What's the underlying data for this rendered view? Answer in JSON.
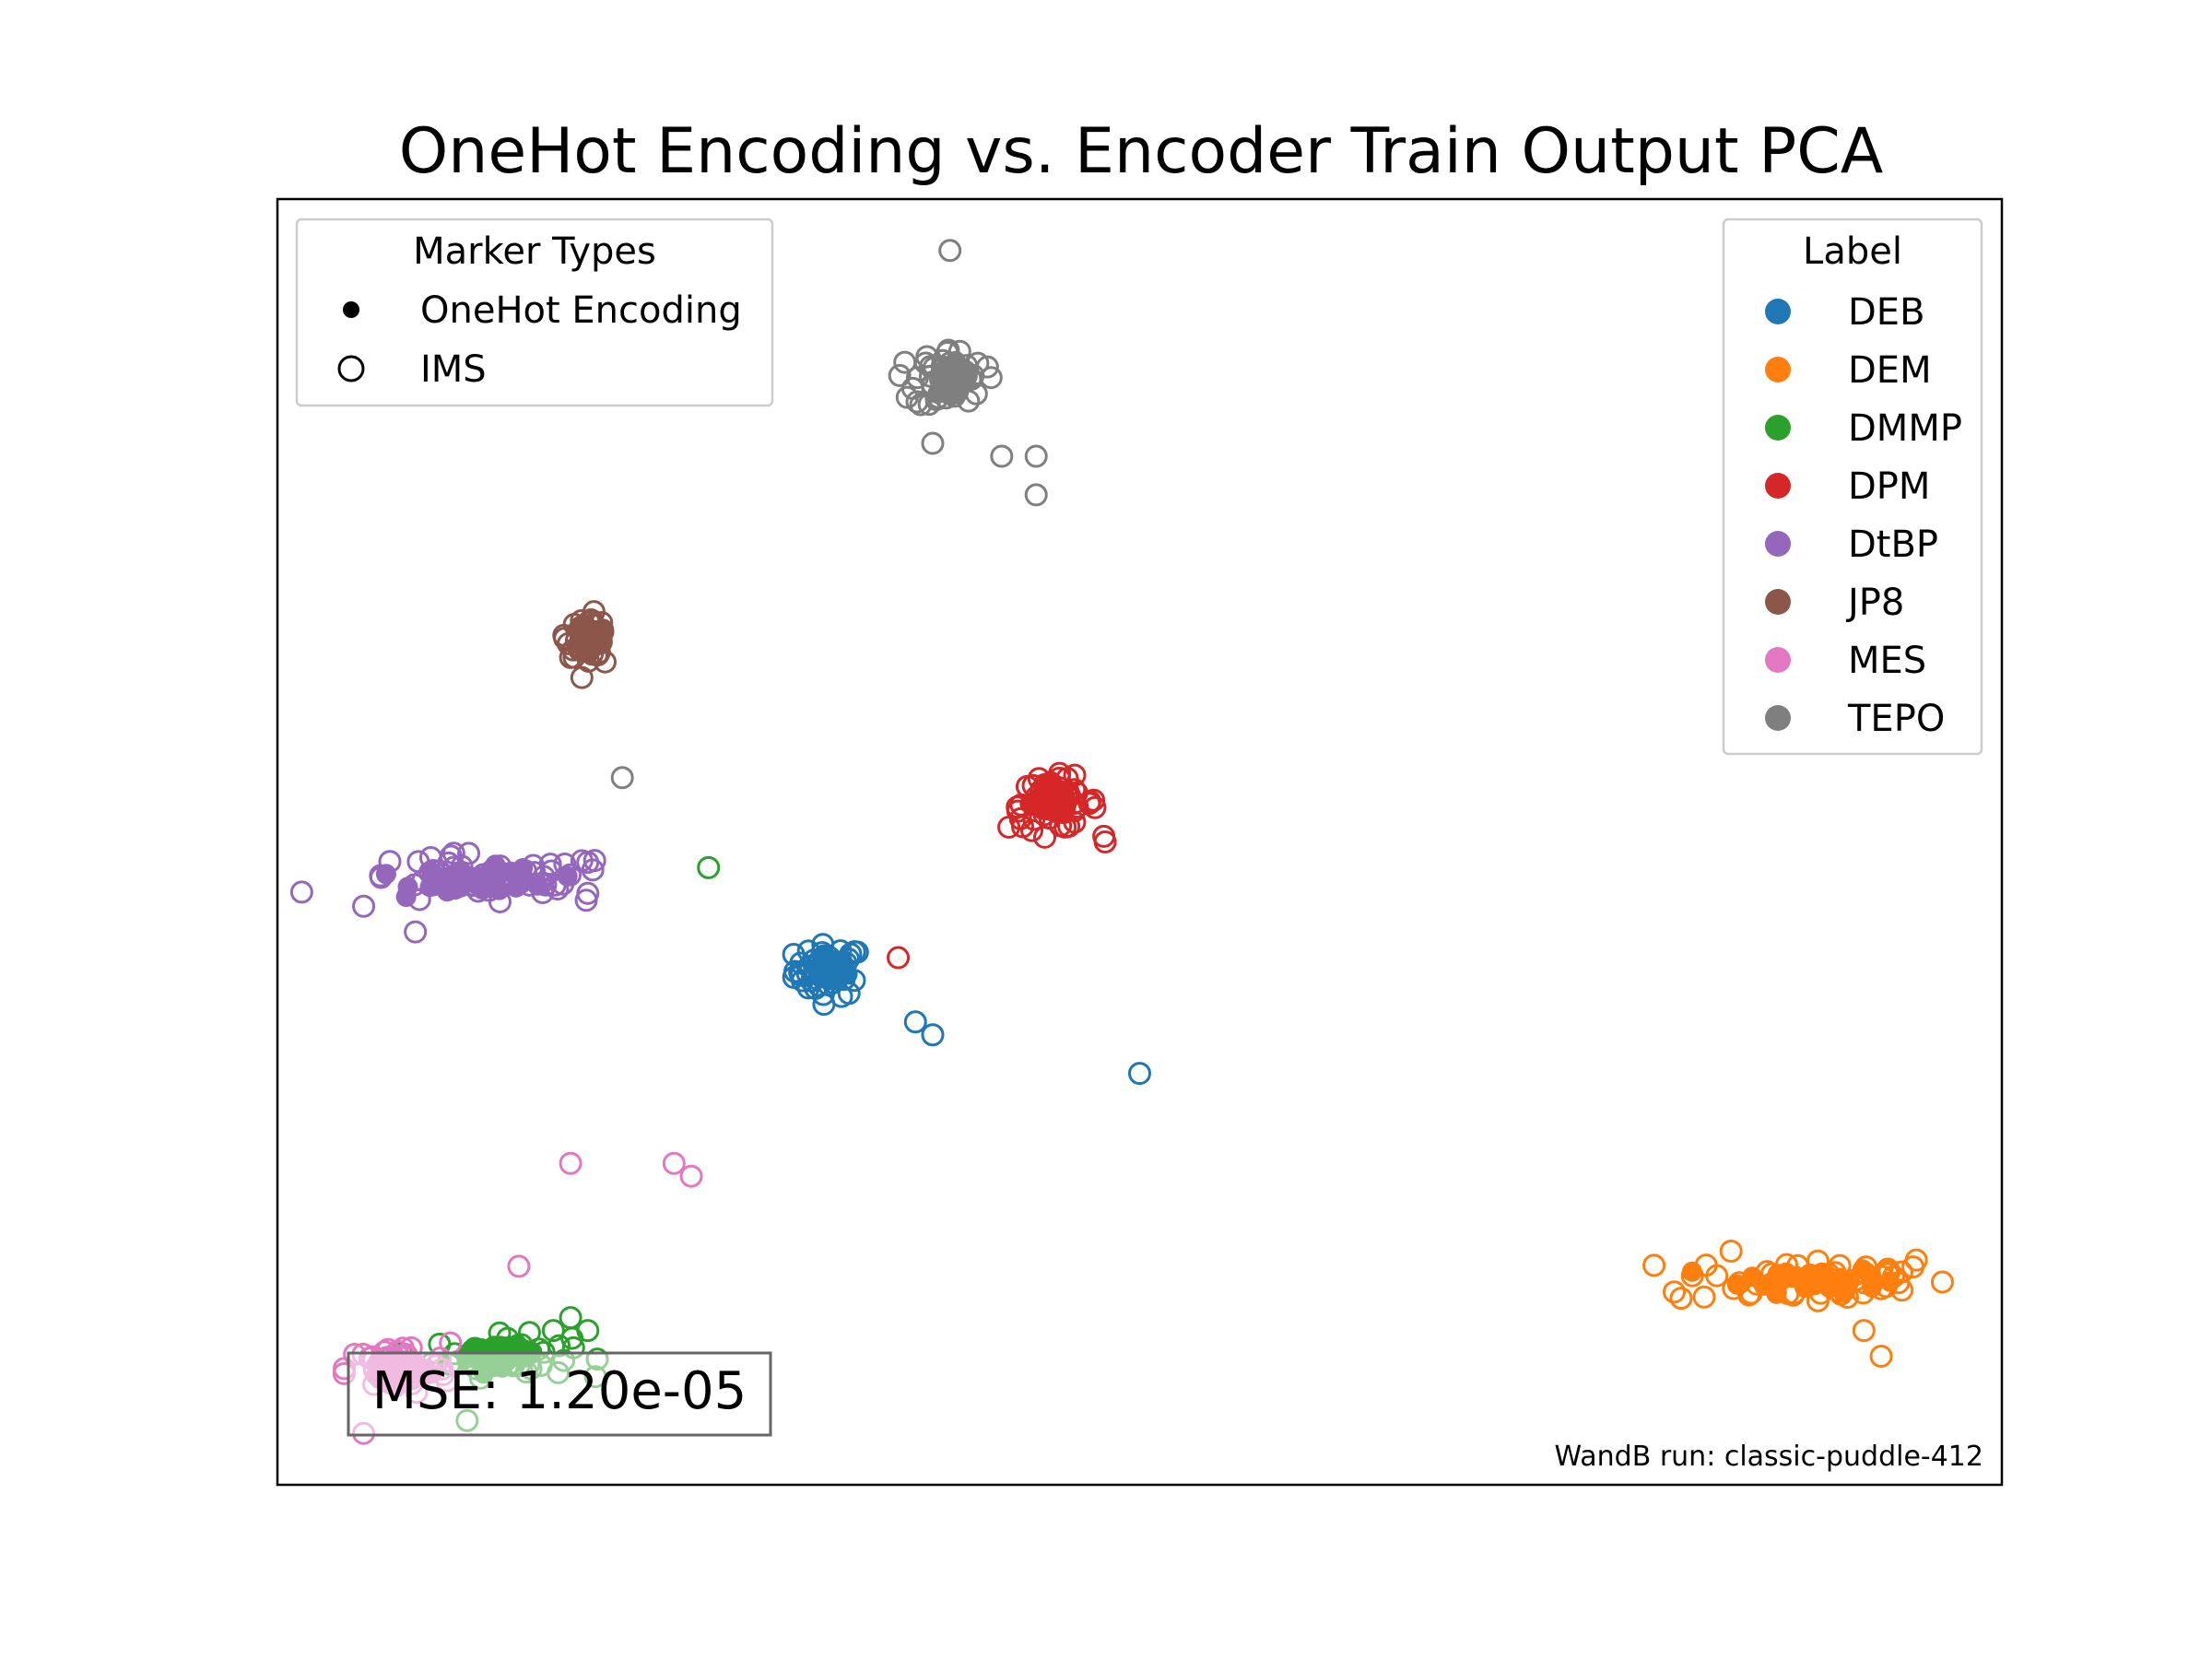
{
  "chart_data": {
    "type": "scatter",
    "title": "OneHot Encoding vs. Encoder Train Output PCA",
    "xlabel": "",
    "ylabel": "",
    "axes_visible": false,
    "grid": false,
    "marker_legend": {
      "title": "Marker Types",
      "placement": "top-left",
      "entries": [
        {
          "label": "OneHot Encoding",
          "marker": "filled-dot"
        },
        {
          "label": "IMS",
          "marker": "open-circle"
        }
      ]
    },
    "label_legend": {
      "title": "Label",
      "placement": "top-right"
    },
    "series": [
      {
        "name": "DEB",
        "color": "#1f77b4",
        "center": [
          0.32,
          0.4
        ],
        "spread": [
          0.01,
          0.01
        ],
        "outliers": [
          [
            0.37,
            0.36
          ],
          [
            0.38,
            0.35
          ],
          [
            0.5,
            0.32
          ]
        ]
      },
      {
        "name": "DEM",
        "color": "#ff7f0e",
        "center": [
          0.89,
          0.16
        ],
        "spread": [
          0.04,
          0.01
        ],
        "outliers": [
          [
            0.81,
            0.15
          ],
          [
            0.92,
            0.12
          ],
          [
            0.93,
            0.1
          ]
        ]
      },
      {
        "name": "DMMP",
        "color": "#2ca02c",
        "center": [
          0.13,
          0.1
        ],
        "spread": [
          0.02,
          0.008
        ],
        "outliers": [
          [
            0.25,
            0.48
          ],
          [
            0.16,
            0.12
          ],
          [
            0.17,
            0.13
          ],
          [
            0.18,
            0.12
          ],
          [
            0.11,
            0.05
          ]
        ]
      },
      {
        "name": "DPM",
        "color": "#d62728",
        "center": [
          0.45,
          0.53
        ],
        "spread": [
          0.013,
          0.01
        ],
        "outliers": [
          [
            0.36,
            0.41
          ],
          [
            0.48,
            0.5
          ]
        ]
      },
      {
        "name": "DtBP",
        "color": "#9467bd",
        "center": [
          0.12,
          0.47
        ],
        "spread": [
          0.04,
          0.01
        ],
        "outliers": [
          [
            0.05,
            0.45
          ],
          [
            0.08,
            0.43
          ],
          [
            0.18,
            0.46
          ]
        ]
      },
      {
        "name": "JP8",
        "color": "#8c564b",
        "center": [
          0.18,
          0.66
        ],
        "spread": [
          0.006,
          0.008
        ],
        "outliers": [
          [
            0.19,
            0.64
          ]
        ]
      },
      {
        "name": "MES",
        "color": "#e377c2",
        "center": [
          0.07,
          0.09
        ],
        "spread": [
          0.015,
          0.01
        ],
        "outliers": [
          [
            0.17,
            0.25
          ],
          [
            0.23,
            0.25
          ],
          [
            0.24,
            0.24
          ],
          [
            0.14,
            0.17
          ],
          [
            0.05,
            0.04
          ]
        ]
      },
      {
        "name": "TEPO",
        "color": "#7f7f7f",
        "center": [
          0.39,
          0.86
        ],
        "spread": [
          0.01,
          0.012
        ],
        "outliers": [
          [
            0.39,
            0.96
          ],
          [
            0.42,
            0.8
          ],
          [
            0.44,
            0.8
          ],
          [
            0.44,
            0.77
          ],
          [
            0.2,
            0.55
          ],
          [
            0.38,
            0.81
          ]
        ]
      }
    ],
    "annotations": [
      {
        "text": "MSE: 1.20e-05",
        "placement": "bottom-left",
        "boxed": true
      },
      {
        "text": "WandB run: classic-puddle-412",
        "placement": "bottom-right"
      }
    ]
  }
}
